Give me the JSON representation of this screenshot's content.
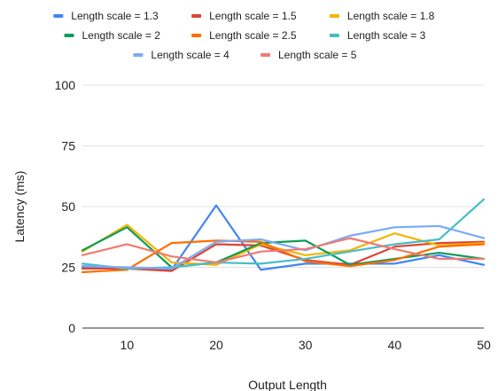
{
  "chart_data": {
    "type": "line",
    "title": "",
    "xlabel": "Output Length",
    "ylabel": "Latency (ms)",
    "x": [
      5,
      10,
      15,
      20,
      25,
      30,
      35,
      40,
      45,
      50
    ],
    "xlim": [
      5,
      50
    ],
    "ylim": [
      0,
      100
    ],
    "xticks": [
      10,
      20,
      30,
      40,
      50
    ],
    "yticks": [
      0,
      25,
      50,
      75,
      100
    ],
    "grid": "horizontal",
    "legend_position": "top",
    "series": [
      {
        "name": "Length scale = 1.3",
        "color": "#4285F4",
        "values": [
          25,
          24.5,
          24,
          50.5,
          24,
          26.5,
          26.5,
          26.5,
          30,
          26
        ]
      },
      {
        "name": "Length scale = 1.5",
        "color": "#DB4437",
        "values": [
          24.5,
          24.5,
          23.5,
          34.5,
          34,
          28,
          26,
          33.5,
          35,
          35.5
        ]
      },
      {
        "name": "Length scale = 1.8",
        "color": "#F4B400",
        "values": [
          31.5,
          42.5,
          27,
          26,
          34.5,
          30,
          32,
          39,
          34,
          35
        ]
      },
      {
        "name": "Length scale = 2",
        "color": "#0F9D58",
        "values": [
          32,
          41.5,
          25,
          27,
          35,
          36,
          26,
          28.5,
          31,
          28.5
        ]
      },
      {
        "name": "Length scale = 2.5",
        "color": "#FF6D00",
        "values": [
          23,
          24,
          35,
          36,
          35.5,
          27.5,
          25.5,
          28,
          33.5,
          34.5
        ]
      },
      {
        "name": "Length scale = 3",
        "color": "#46BDC6",
        "values": [
          26.5,
          24.5,
          25,
          27,
          26.5,
          28.5,
          31.5,
          34.5,
          36.5,
          53
        ]
      },
      {
        "name": "Length scale = 4",
        "color": "#7BAAF7",
        "values": [
          25.5,
          25,
          24.5,
          35.5,
          36.5,
          32,
          38,
          41.5,
          42,
          37
        ]
      },
      {
        "name": "Length scale = 5",
        "color": "#F07B72",
        "values": [
          30,
          34.5,
          29.5,
          27,
          31.5,
          32.5,
          37,
          32.5,
          28.5,
          28.5
        ]
      }
    ]
  }
}
